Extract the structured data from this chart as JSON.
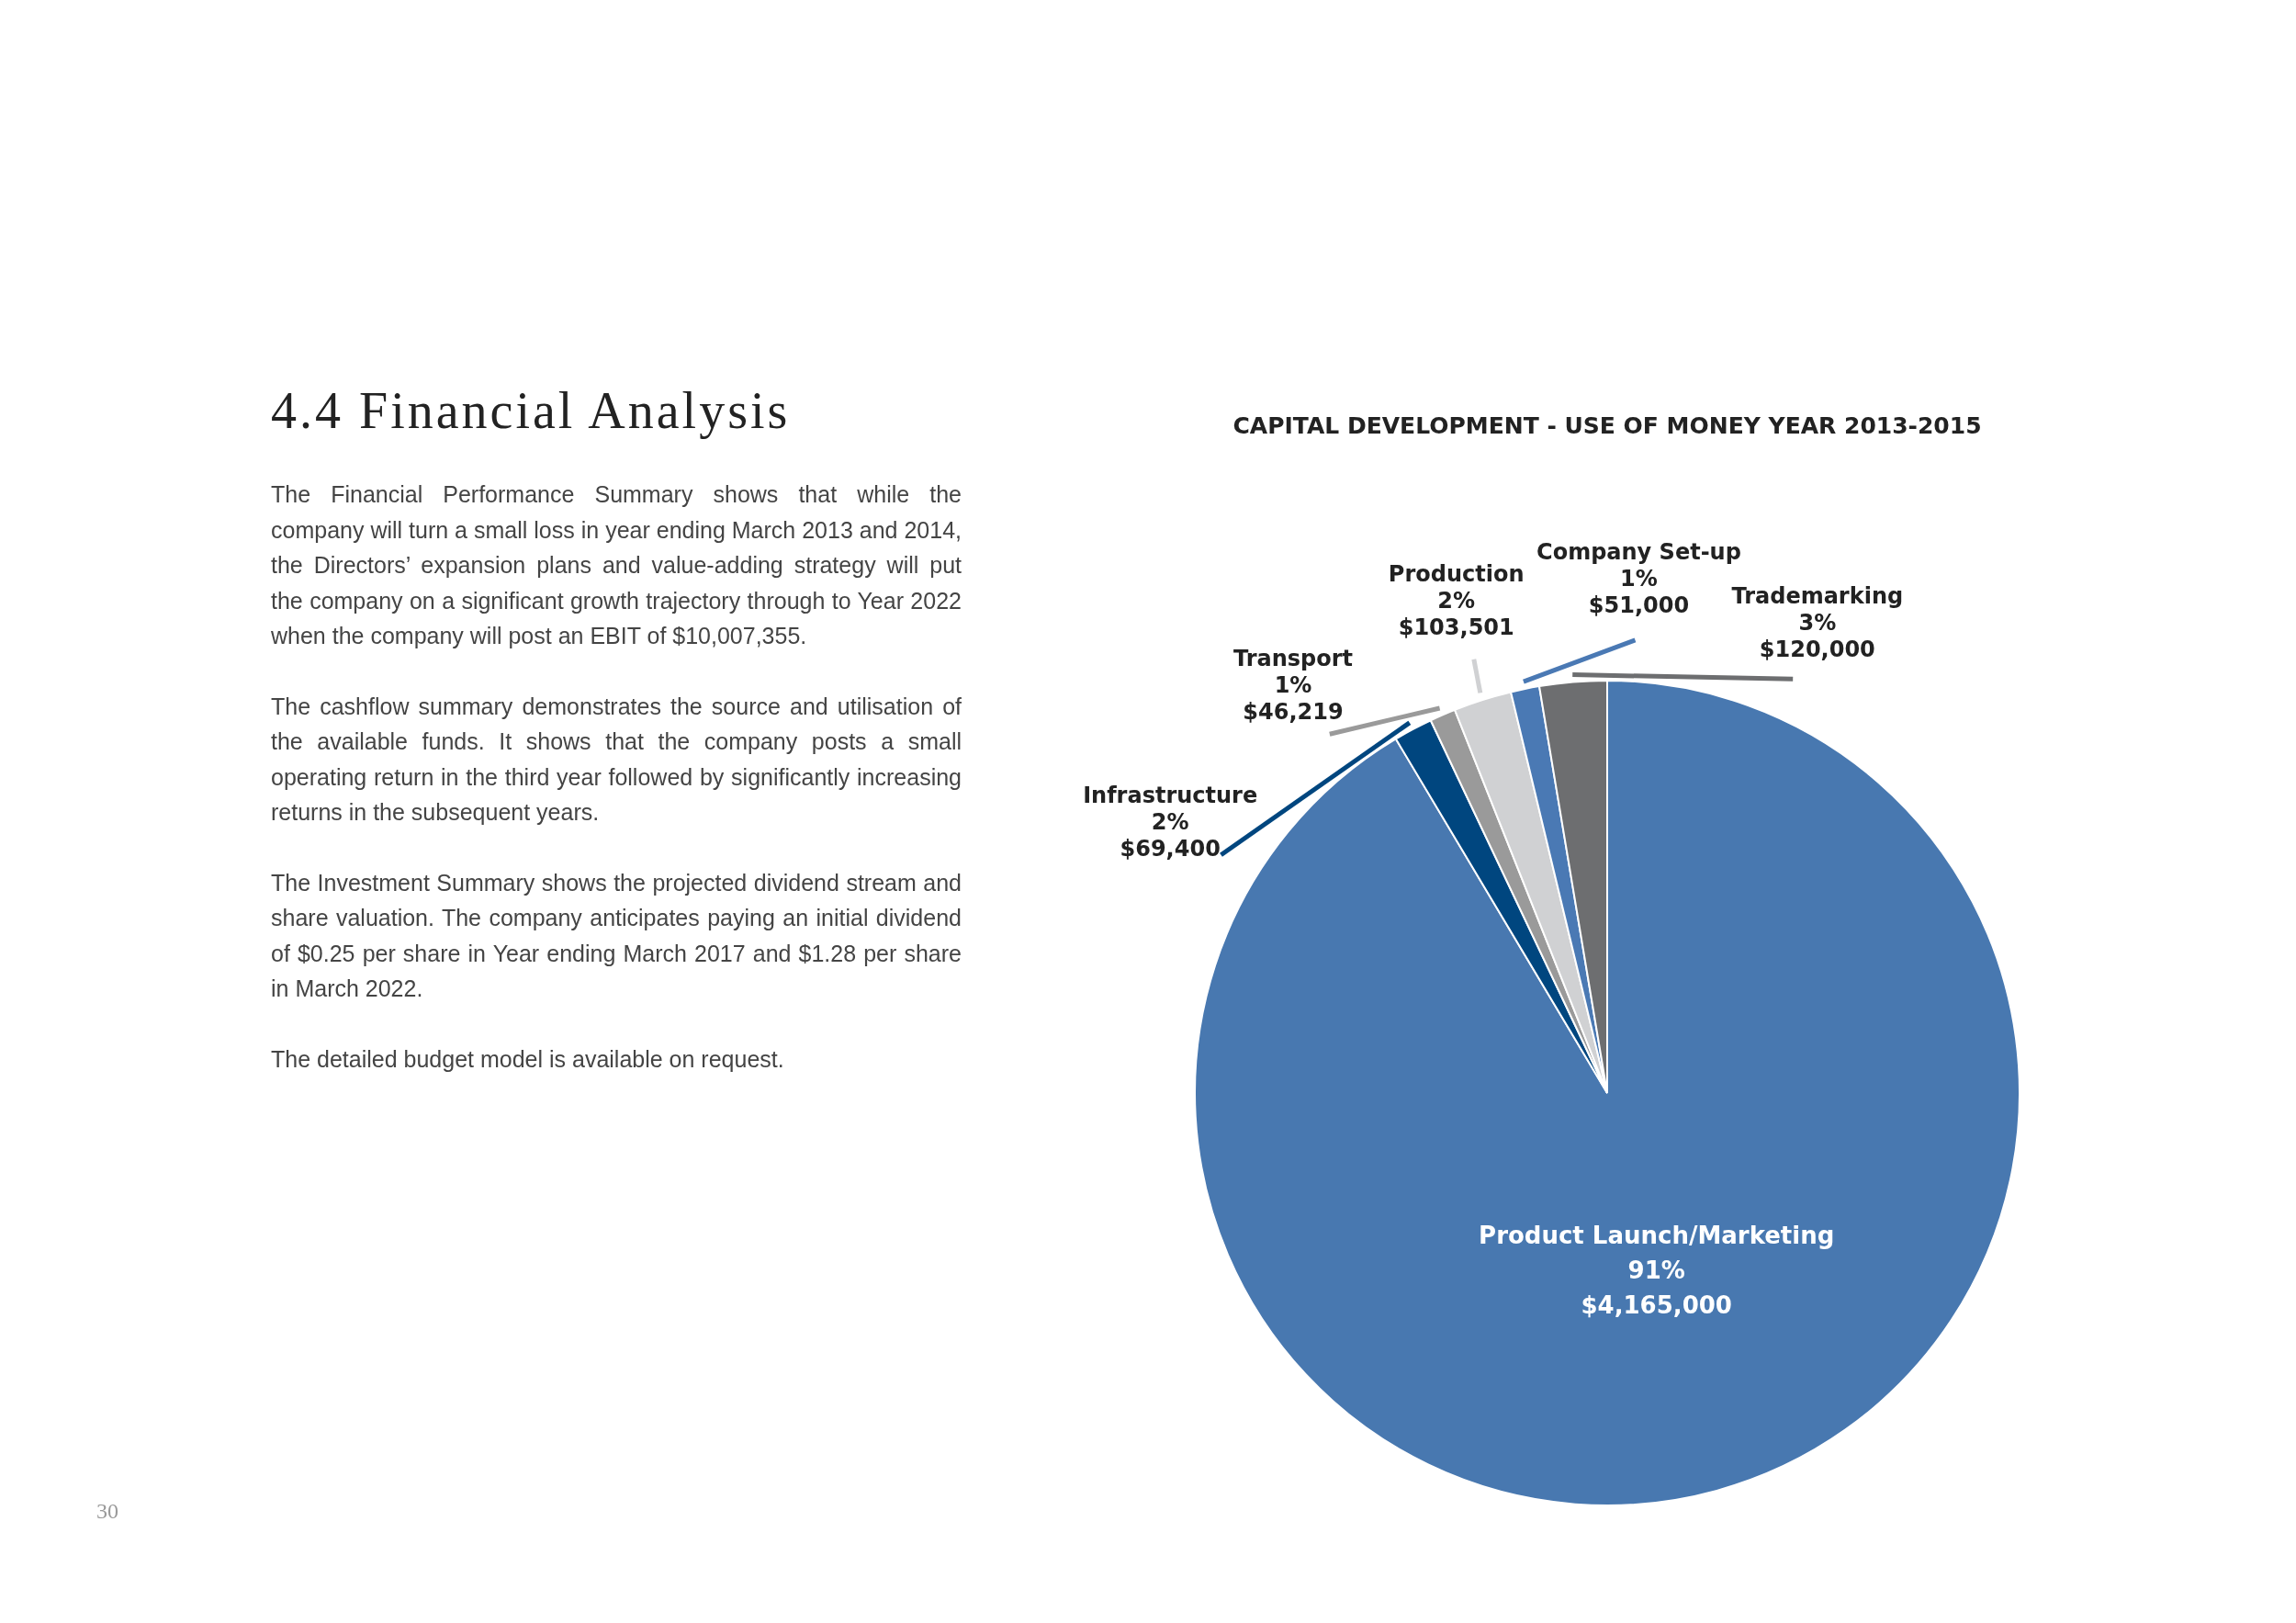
{
  "chart_data": {
    "type": "pie",
    "title": "CAPITAL DEVELOPMENT - USE OF MONEY YEAR 2013-2015",
    "categories": [
      "Product Launch/Marketing",
      "Infrastructure",
      "Transport",
      "Production",
      "Company Set-up",
      "Trademarking"
    ],
    "values": [
      4165000,
      69400,
      46219,
      103501,
      51000,
      120000
    ],
    "colors": [
      "#4878b0",
      "#00467f",
      "#9a9a9a",
      "#d0d1d3",
      "#4a79b4",
      "#6d6e70"
    ],
    "value_labels": [
      "91%\n$4,165,000",
      "2%\n$69,400",
      "1%\n$46,219",
      "2%\n$103,501",
      "1%\n$51,000",
      "3%\n$120,000"
    ],
    "annotations": [
      "4.4  Financial Analysis",
      "The Financial Performance Summary shows that while the company will turn a small loss in year ending March 2013 and 2014, the Directors’ expansion plans and value-adding strategy will put the company on a significant growth trajectory through to Year 2022 when the company will post an EBIT of $10,007,355.",
      "The cashflow summary demonstrates the source and utilisation of the available funds. It shows that the company posts a small operating return in the third year followed by significantly increasing returns in the subsequent years.",
      "The Investment Summary shows the projected dividend stream and share valuation. The company anticipates paying an initial dividend of $0.25 per share in Year ending March 2017 and $1.28 per share in March 2022.",
      "The detailed budget model is available on request.",
      "30"
    ]
  }
}
